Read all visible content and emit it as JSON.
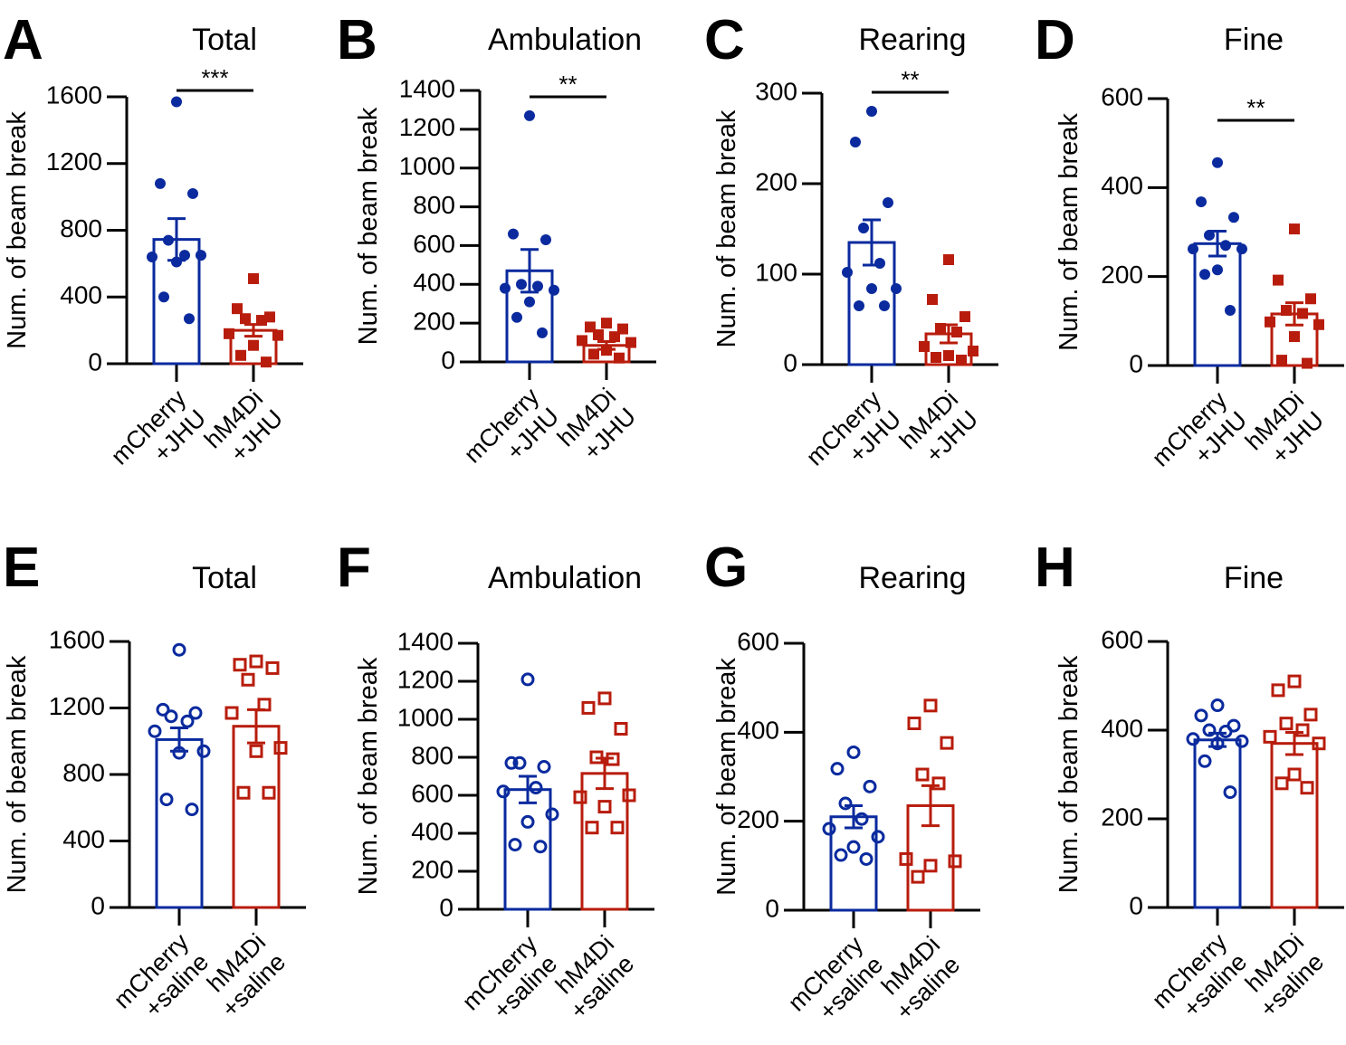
{
  "colors": {
    "mCherry": "#0a2a9e",
    "hM4Di": "#b81c0c",
    "axis": "#000000"
  },
  "chart_data": [
    {
      "type": "bar",
      "panel": "A",
      "title": "Total",
      "ylabel": "Num. of beam break",
      "ylim": [
        0,
        1600
      ],
      "yticks": [
        0,
        400,
        800,
        1200,
        1600
      ],
      "categories": [
        [
          "mCherry",
          "+JHU"
        ],
        [
          "hM4Di",
          "+JHU"
        ]
      ],
      "marker_fill": "filled",
      "significance": "***",
      "series": [
        {
          "group": "mCherry",
          "mean": 745,
          "sem": 125,
          "points": [
            1570,
            1080,
            1020,
            740,
            650,
            640,
            650,
            610,
            400,
            270
          ]
        },
        {
          "group": "hM4Di",
          "mean": 200,
          "sem": 35,
          "points": [
            510,
            330,
            280,
            270,
            260,
            180,
            170,
            110,
            50,
            10
          ]
        }
      ]
    },
    {
      "type": "bar",
      "panel": "B",
      "title": "Ambulation",
      "ylabel": "Num. of beam break",
      "ylim": [
        0,
        1400
      ],
      "yticks": [
        0,
        200,
        400,
        600,
        800,
        1000,
        1200,
        1400
      ],
      "categories": [
        [
          "mCherry",
          "+JHU"
        ],
        [
          "hM4Di",
          "+JHU"
        ]
      ],
      "marker_fill": "filled",
      "significance": "**",
      "series": [
        {
          "group": "mCherry",
          "mean": 470,
          "sem": 110,
          "points": [
            1270,
            660,
            630,
            400,
            390,
            380,
            370,
            310,
            230,
            150
          ]
        },
        {
          "group": "hM4Di",
          "mean": 85,
          "sem": 20,
          "points": [
            200,
            180,
            170,
            140,
            130,
            110,
            100,
            60,
            40,
            20
          ]
        }
      ]
    },
    {
      "type": "bar",
      "panel": "C",
      "title": "Rearing",
      "ylabel": "Num. of beam break",
      "ylim": [
        0,
        300
      ],
      "yticks": [
        0,
        100,
        200,
        300
      ],
      "categories": [
        [
          "mCherry",
          "+JHU"
        ],
        [
          "hM4Di",
          "+JHU"
        ]
      ],
      "marker_fill": "filled",
      "significance": "**",
      "series": [
        {
          "group": "mCherry",
          "mean": 135,
          "sem": 25,
          "points": [
            280,
            246,
            179,
            151,
            112,
            102,
            84,
            84,
            65,
            65
          ]
        },
        {
          "group": "hM4Di",
          "mean": 34,
          "sem": 10,
          "points": [
            116,
            72,
            53,
            40,
            36,
            20,
            15,
            10,
            8,
            5
          ]
        }
      ]
    },
    {
      "type": "bar",
      "panel": "D",
      "title": "Fine",
      "ylabel": "Num. of beam break",
      "ylim": [
        0,
        600
      ],
      "yticks": [
        0,
        200,
        400,
        600
      ],
      "categories": [
        [
          "mCherry",
          "+JHU"
        ],
        [
          "hM4Di",
          "+JHU"
        ]
      ],
      "marker_fill": "filled",
      "significance": "**",
      "series": [
        {
          "group": "mCherry",
          "mean": 274,
          "sem": 28,
          "points": [
            456,
            368,
            333,
            293,
            270,
            262,
            262,
            215,
            205,
            124
          ]
        },
        {
          "group": "hM4Di",
          "mean": 116,
          "sem": 25,
          "points": [
            307,
            192,
            150,
            124,
            117,
            98,
            92,
            65,
            12,
            5
          ]
        }
      ]
    },
    {
      "type": "bar",
      "panel": "E",
      "title": "Total",
      "ylabel": "Num. of beam break",
      "ylim": [
        0,
        1600
      ],
      "yticks": [
        0,
        400,
        800,
        1200,
        1600
      ],
      "categories": [
        [
          "mCherry",
          "+saline"
        ],
        [
          "hM4Di",
          "+saline"
        ]
      ],
      "marker_fill": "open",
      "significance": "",
      "series": [
        {
          "group": "mCherry",
          "mean": 1010,
          "sem": 70,
          "points": [
            1550,
            1190,
            1170,
            1150,
            1120,
            1060,
            940,
            930,
            650,
            590
          ]
        },
        {
          "group": "hM4Di",
          "mean": 1090,
          "sem": 100,
          "points": [
            1480,
            1460,
            1440,
            1370,
            1220,
            1170,
            960,
            940,
            690,
            690
          ]
        }
      ]
    },
    {
      "type": "bar",
      "panel": "F",
      "title": "Ambulation",
      "ylabel": "Num. of beam break",
      "ylim": [
        0,
        1400
      ],
      "yticks": [
        0,
        200,
        400,
        600,
        800,
        1000,
        1200,
        1400
      ],
      "categories": [
        [
          "mCherry",
          "+saline"
        ],
        [
          "hM4Di",
          "+saline"
        ]
      ],
      "marker_fill": "open",
      "significance": "",
      "series": [
        {
          "group": "mCherry",
          "mean": 630,
          "sem": 70,
          "points": [
            1210,
            770,
            750,
            770,
            640,
            620,
            500,
            460,
            340,
            330
          ]
        },
        {
          "group": "hM4Di",
          "mean": 715,
          "sem": 80,
          "points": [
            1110,
            1060,
            950,
            800,
            790,
            590,
            600,
            540,
            430,
            430
          ]
        }
      ]
    },
    {
      "type": "bar",
      "panel": "G",
      "title": "Rearing",
      "ylabel": "Num. of beam break",
      "ylim": [
        0,
        600
      ],
      "yticks": [
        0,
        200,
        400,
        600
      ],
      "categories": [
        [
          "mCherry",
          "+saline"
        ],
        [
          "hM4Di",
          "+saline"
        ]
      ],
      "marker_fill": "open",
      "significance": "",
      "series": [
        {
          "group": "mCherry",
          "mean": 210,
          "sem": 25,
          "points": [
            355,
            318,
            278,
            240,
            205,
            183,
            165,
            142,
            124,
            115
          ]
        },
        {
          "group": "hM4Di",
          "mean": 235,
          "sem": 45,
          "points": [
            460,
            420,
            376,
            305,
            285,
            115,
            110,
            100,
            75
          ]
        }
      ]
    },
    {
      "type": "bar",
      "panel": "H",
      "title": "Fine",
      "ylabel": "Num. of beam break",
      "ylim": [
        0,
        600
      ],
      "yticks": [
        0,
        200,
        400,
        600
      ],
      "categories": [
        [
          "mCherry",
          "+saline"
        ],
        [
          "hM4Di",
          "+saline"
        ]
      ],
      "marker_fill": "open",
      "significance": "",
      "series": [
        {
          "group": "mCherry",
          "mean": 378,
          "sem": 15,
          "points": [
            456,
            433,
            410,
            400,
            397,
            380,
            375,
            370,
            330,
            260
          ]
        },
        {
          "group": "hM4Di",
          "mean": 370,
          "sem": 25,
          "points": [
            510,
            490,
            435,
            415,
            400,
            385,
            370,
            300,
            280,
            270
          ]
        }
      ]
    }
  ]
}
